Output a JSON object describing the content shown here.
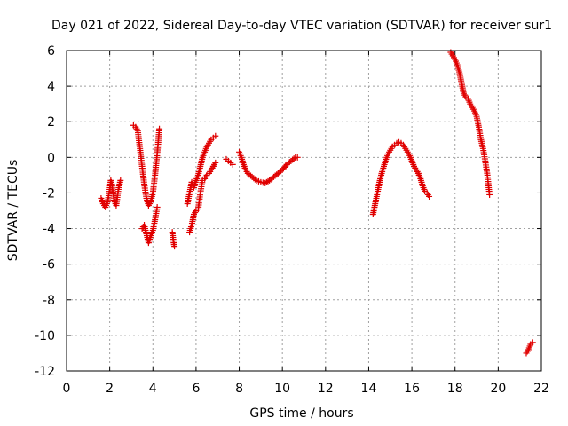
{
  "chart_data": {
    "type": "scatter",
    "title": "Day 021 of 2022, Sidereal Day-to-day VTEC variation (SDTVAR) for receiver sur1",
    "xlabel": "GPS time / hours",
    "ylabel": "SDTVAR / TECUs",
    "xlim": [
      0,
      22
    ],
    "ylim": [
      -12,
      6
    ],
    "xticks": [
      "0",
      "2",
      "4",
      "6",
      "8",
      "10",
      "12",
      "14",
      "16",
      "18",
      "20",
      "22"
    ],
    "yticks": [
      "6",
      "4",
      "2",
      "0",
      "-2",
      "-4",
      "-6",
      "-8",
      "-10",
      "-12"
    ],
    "grid": true,
    "marker": "plus",
    "color": "#e00000",
    "segments": [
      [
        [
          1.6,
          -2.3
        ],
        [
          1.7,
          -2.6
        ],
        [
          1.8,
          -2.8
        ],
        [
          1.9,
          -2.5
        ],
        [
          2.0,
          -1.8
        ],
        [
          2.05,
          -1.3
        ],
        [
          2.1,
          -1.5
        ],
        [
          2.2,
          -2.4
        ],
        [
          2.3,
          -2.7
        ],
        [
          2.4,
          -1.8
        ],
        [
          2.5,
          -1.3
        ]
      ],
      [
        [
          3.1,
          1.8
        ],
        [
          3.2,
          1.7
        ],
        [
          3.3,
          1.5
        ],
        [
          3.4,
          0.5
        ],
        [
          3.5,
          -0.5
        ],
        [
          3.6,
          -1.5
        ],
        [
          3.7,
          -2.3
        ],
        [
          3.8,
          -2.7
        ],
        [
          3.9,
          -2.5
        ],
        [
          4.0,
          -2.0
        ],
        [
          4.1,
          -1.0
        ],
        [
          4.2,
          0.2
        ],
        [
          4.3,
          1.6
        ]
      ],
      [
        [
          3.5,
          -4.0
        ],
        [
          3.6,
          -3.8
        ],
        [
          3.7,
          -4.3
        ],
        [
          3.8,
          -4.8
        ],
        [
          3.9,
          -4.4
        ],
        [
          4.0,
          -4.1
        ],
        [
          4.1,
          -3.5
        ],
        [
          4.2,
          -2.8
        ]
      ],
      [
        [
          4.9,
          -4.2
        ],
        [
          4.95,
          -4.7
        ],
        [
          5.0,
          -5.0
        ]
      ],
      [
        [
          5.6,
          -2.6
        ],
        [
          5.7,
          -2.0
        ],
        [
          5.8,
          -1.4
        ],
        [
          5.9,
          -1.7
        ],
        [
          6.0,
          -1.3
        ],
        [
          6.1,
          -1.0
        ],
        [
          6.2,
          -0.5
        ],
        [
          6.3,
          0.0
        ],
        [
          6.4,
          0.3
        ],
        [
          6.5,
          0.6
        ],
        [
          6.6,
          0.8
        ],
        [
          6.7,
          1.0
        ],
        [
          6.8,
          1.1
        ],
        [
          6.9,
          1.2
        ]
      ],
      [
        [
          5.7,
          -4.2
        ],
        [
          5.8,
          -3.8
        ],
        [
          5.9,
          -3.2
        ],
        [
          6.0,
          -3.0
        ],
        [
          6.1,
          -2.9
        ],
        [
          6.2,
          -2.0
        ],
        [
          6.3,
          -1.3
        ],
        [
          6.4,
          -1.2
        ],
        [
          6.5,
          -1.0
        ],
        [
          6.6,
          -0.9
        ],
        [
          6.7,
          -0.7
        ],
        [
          6.8,
          -0.5
        ],
        [
          6.9,
          -0.3
        ]
      ],
      [
        [
          7.4,
          -0.1
        ],
        [
          7.5,
          -0.2
        ],
        [
          7.6,
          -0.3
        ],
        [
          7.7,
          -0.4
        ]
      ],
      [
        [
          8.0,
          0.3
        ],
        [
          8.1,
          0.0
        ],
        [
          8.2,
          -0.4
        ],
        [
          8.3,
          -0.7
        ],
        [
          8.4,
          -0.9
        ],
        [
          8.6,
          -1.1
        ],
        [
          8.8,
          -1.3
        ],
        [
          9.0,
          -1.4
        ],
        [
          9.2,
          -1.45
        ],
        [
          9.4,
          -1.3
        ],
        [
          9.6,
          -1.1
        ],
        [
          9.8,
          -0.9
        ],
        [
          10.0,
          -0.7
        ],
        [
          10.2,
          -0.4
        ],
        [
          10.4,
          -0.2
        ],
        [
          10.6,
          0.0
        ],
        [
          10.7,
          0.0
        ]
      ],
      [
        [
          14.2,
          -3.2
        ],
        [
          14.3,
          -2.6
        ],
        [
          14.4,
          -2.0
        ],
        [
          14.5,
          -1.4
        ],
        [
          14.6,
          -0.9
        ],
        [
          14.7,
          -0.5
        ],
        [
          14.8,
          -0.1
        ],
        [
          14.9,
          0.2
        ],
        [
          15.0,
          0.4
        ],
        [
          15.1,
          0.6
        ],
        [
          15.2,
          0.7
        ],
        [
          15.3,
          0.8
        ],
        [
          15.4,
          0.85
        ],
        [
          15.5,
          0.8
        ],
        [
          15.6,
          0.7
        ],
        [
          15.7,
          0.5
        ],
        [
          15.8,
          0.3
        ],
        [
          15.9,
          0.1
        ],
        [
          16.0,
          -0.2
        ],
        [
          16.1,
          -0.5
        ],
        [
          16.2,
          -0.7
        ],
        [
          16.3,
          -0.9
        ],
        [
          16.4,
          -1.2
        ],
        [
          16.5,
          -1.6
        ],
        [
          16.6,
          -1.9
        ],
        [
          16.7,
          -2.0
        ],
        [
          16.8,
          -2.2
        ]
      ],
      [
        [
          17.8,
          5.9
        ],
        [
          17.9,
          5.7
        ],
        [
          18.0,
          5.5
        ],
        [
          18.1,
          5.2
        ],
        [
          18.2,
          4.8
        ],
        [
          18.3,
          4.2
        ],
        [
          18.4,
          3.6
        ],
        [
          18.5,
          3.4
        ],
        [
          18.6,
          3.3
        ],
        [
          18.7,
          3.0
        ],
        [
          18.8,
          2.8
        ],
        [
          18.9,
          2.6
        ],
        [
          19.0,
          2.3
        ],
        [
          19.1,
          1.7
        ],
        [
          19.2,
          1.0
        ],
        [
          19.3,
          0.5
        ],
        [
          19.4,
          -0.2
        ],
        [
          19.5,
          -1.0
        ],
        [
          19.55,
          -1.6
        ],
        [
          19.6,
          -2.1
        ]
      ],
      [
        [
          21.3,
          -11.0
        ],
        [
          21.4,
          -10.8
        ],
        [
          21.5,
          -10.5
        ],
        [
          21.6,
          -10.4
        ]
      ]
    ]
  }
}
